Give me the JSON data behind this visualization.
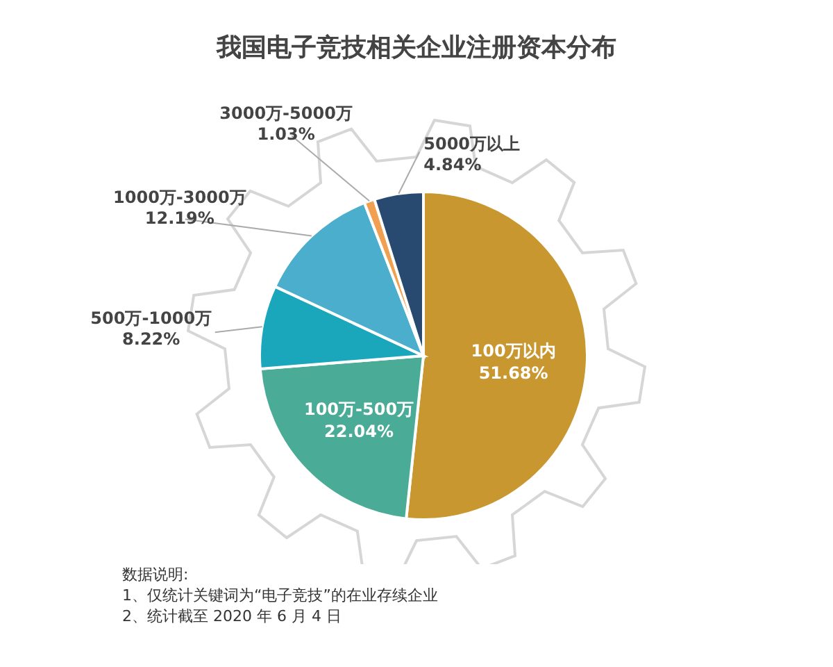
{
  "chart_data": {
    "type": "pie",
    "title": "我国电子竞技相关企业注册资本分布",
    "categories": [
      "100万以内",
      "100万-500万",
      "500万-1000万",
      "1000万-3000万",
      "3000万-5000万",
      "5000万以上"
    ],
    "values": [
      51.68,
      22.04,
      8.22,
      12.19,
      1.03,
      4.84
    ],
    "value_labels": [
      "51.68%",
      "22.04%",
      "8.22%",
      "12.19%",
      "1.03%",
      "4.84%"
    ],
    "colors": [
      "#c8972f",
      "#4aab96",
      "#1aa6bb",
      "#4aaecc",
      "#f0a050",
      "#284a70"
    ],
    "annotations": [
      "数据说明:",
      "1、仅统计关键词为“电子竞技”的在业存续企业",
      "2、统计截至 2020 年 6 月 4 日"
    ]
  }
}
